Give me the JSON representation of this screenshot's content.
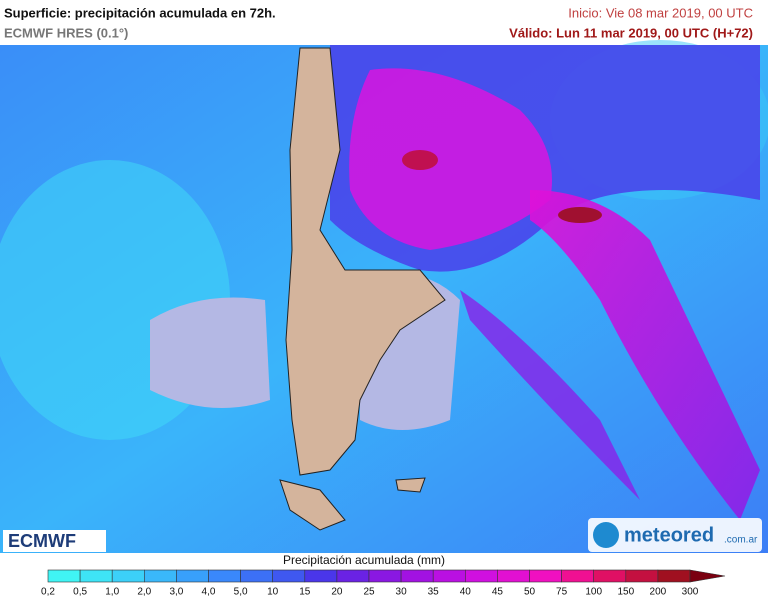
{
  "header": {
    "title": "Superficie: precipitación acumulada en 72h.",
    "model": "ECMWF HRES (0.1°)",
    "init": "Inicio: Vie 08 mar 2019, 00 UTC",
    "valid": "Válido: Lun 11 mar 2019, 00 UTC (H+72)"
  },
  "logos": {
    "ecmwf": "ECMWF",
    "meteored": "meteored",
    "domain": ".com.ar"
  },
  "legend": {
    "title": "Precipitación acumulada (mm)",
    "labels": [
      "0,2",
      "0,5",
      "1,0",
      "2,0",
      "3,0",
      "4,0",
      "5,0",
      "10",
      "15",
      "20",
      "25",
      "30",
      "35",
      "40",
      "45",
      "50",
      "75",
      "100",
      "150",
      "200",
      "300"
    ],
    "colors": [
      "#40f4f4",
      "#3ee4f6",
      "#3cd0f8",
      "#3ab8fa",
      "#38a0fb",
      "#3a88fb",
      "#3c70f6",
      "#3f58f0",
      "#4a36ea",
      "#6a22e4",
      "#8a18e2",
      "#a212e2",
      "#ba10e2",
      "#d010e0",
      "#e210d2",
      "#f010c0",
      "#f01092",
      "#e01064",
      "#c41040",
      "#a01020",
      "#7a0010"
    ]
  }
}
